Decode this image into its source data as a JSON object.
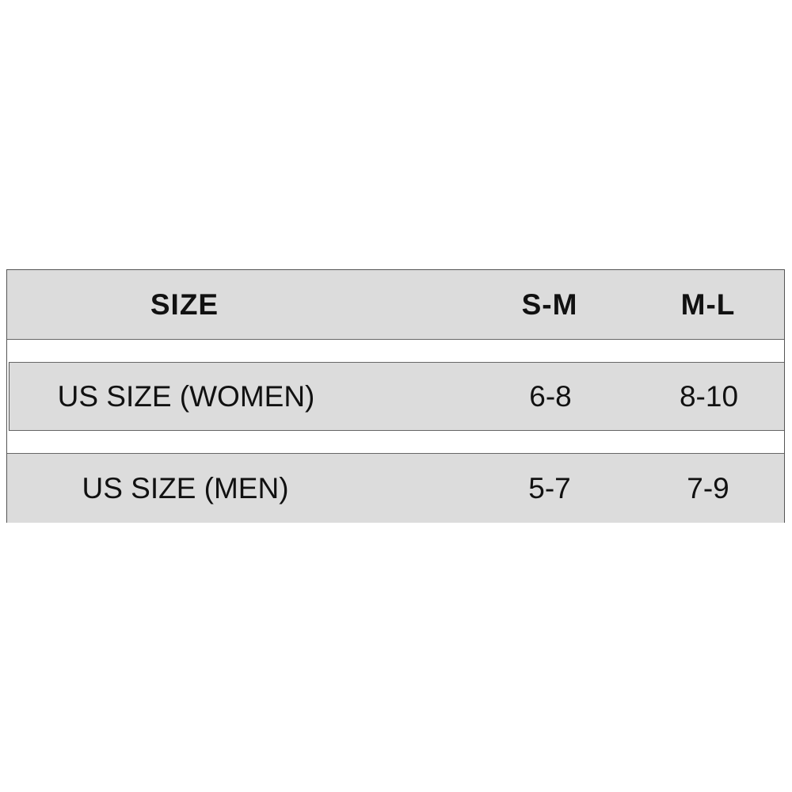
{
  "table": {
    "header": [
      "SIZE",
      "S-M",
      "M-L"
    ],
    "rows": [
      [
        "US SIZE (WOMEN)",
        "6-8",
        "8-10"
      ],
      [
        "US SIZE (MEN)",
        "5-7",
        "7-9"
      ]
    ]
  },
  "colors": {
    "row_background": "#dcdcdc",
    "border": "#555555",
    "text": "#111111"
  }
}
